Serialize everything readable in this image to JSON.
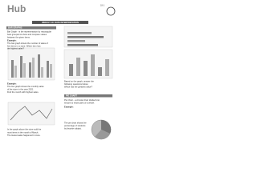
{
  "header": {
    "logo": "Hub",
    "page_code": "10-1",
    "title": "WEEKLY 10: DATA INTERPRETATION"
  },
  "bar_section": {
    "heading": "BAR GRAPHS",
    "intro": [
      "Bar Graph - is the representation by rectangular",
      "bars grouped to show and compare values",
      "between the given items."
    ],
    "example1": "Example:",
    "example1_text": [
      "The bar graph shows the number of sales of",
      "five items in a store. Which item has",
      "the highest sales?"
    ],
    "example2": "Example:",
    "example2_text": [
      "The line graph shows the monthly sales",
      "of the store in the year 2021.",
      "Find the month with highest sales."
    ],
    "bottom_text": [
      "In the graph above the store sold the",
      "most items in the month of March.",
      "The lowest sales happened in June."
    ]
  },
  "right": {
    "chart_text": [
      "Based on the graph, answer the",
      "following questions below.",
      "Which has the greatest value?"
    ],
    "pie_heading": "PIE CHART",
    "pie_intro": [
      "Pie Chart - a circular chart divided into",
      "sectors to show parts of a whole."
    ],
    "example": "Example:",
    "example_text": [
      "The pie chart shows the",
      "percentage of students",
      "by favorite subject."
    ]
  }
}
